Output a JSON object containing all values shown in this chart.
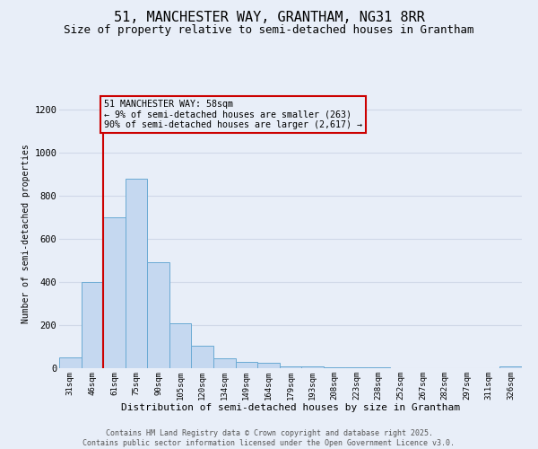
{
  "title1": "51, MANCHESTER WAY, GRANTHAM, NG31 8RR",
  "title2": "Size of property relative to semi-detached houses in Grantham",
  "xlabel": "Distribution of semi-detached houses by size in Grantham",
  "ylabel": "Number of semi-detached properties",
  "categories": [
    "31sqm",
    "46sqm",
    "61sqm",
    "75sqm",
    "90sqm",
    "105sqm",
    "120sqm",
    "134sqm",
    "149sqm",
    "164sqm",
    "179sqm",
    "193sqm",
    "208sqm",
    "223sqm",
    "238sqm",
    "252sqm",
    "267sqm",
    "282sqm",
    "297sqm",
    "311sqm",
    "326sqm"
  ],
  "values": [
    50,
    400,
    700,
    880,
    490,
    210,
    105,
    45,
    30,
    25,
    10,
    8,
    5,
    3,
    3,
    2,
    2,
    1,
    1,
    1,
    10
  ],
  "bar_color": "#c5d8f0",
  "bar_edge_color": "#6aaad4",
  "red_line_index": 2,
  "red_line_color": "#cc0000",
  "annotation_title": "51 MANCHESTER WAY: 58sqm",
  "annotation_line2": "← 9% of semi-detached houses are smaller (263)",
  "annotation_line3": "90% of semi-detached houses are larger (2,617) →",
  "ylim": [
    0,
    1250
  ],
  "yticks": [
    0,
    200,
    400,
    600,
    800,
    1000,
    1200
  ],
  "footer1": "Contains HM Land Registry data © Crown copyright and database right 2025.",
  "footer2": "Contains public sector information licensed under the Open Government Licence v3.0.",
  "bg_color": "#e8eef8",
  "grid_color": "#d0d8e8",
  "title1_fontsize": 11,
  "title2_fontsize": 9
}
